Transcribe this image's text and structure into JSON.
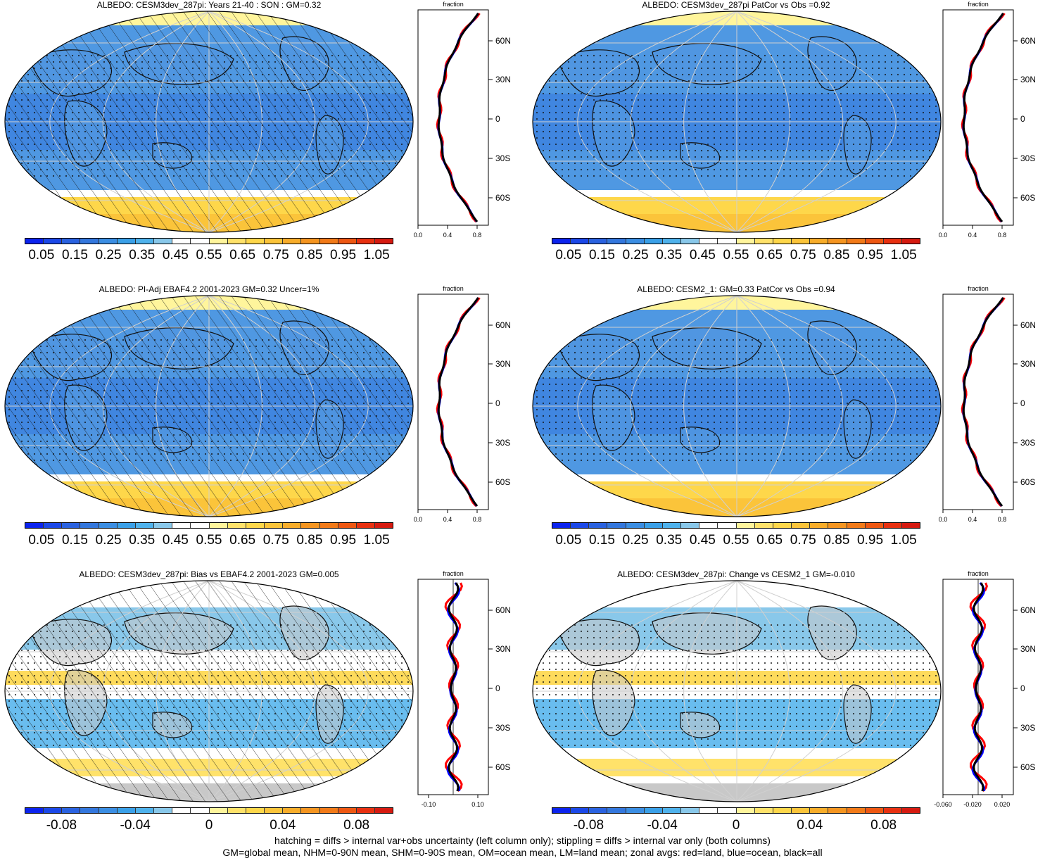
{
  "panels": [
    {
      "id": "p1",
      "title": "ALBEDO: CESM3dev_287pi: Years 21-40 : SON : GM=0.32",
      "kind": "abs",
      "hatch": true,
      "zonal_ticks": [
        "0.0",
        "0.4",
        "0.8"
      ],
      "zonal_header": "fraction"
    },
    {
      "id": "p2",
      "title": "ALBEDO: CESM3dev_287pi PatCor vs Obs =0.92",
      "kind": "abs",
      "hatch": false,
      "zonal_ticks": [
        "0.0",
        "0.4",
        "0.8"
      ],
      "zonal_header": "fraction"
    },
    {
      "id": "p3",
      "title": "ALBEDO: PI-Adj EBAF4.2 2001-2023 GM=0.32 Uncer=1%",
      "kind": "abs",
      "hatch": true,
      "zonal_ticks": [
        "0.0",
        "0.4",
        "0.8"
      ],
      "zonal_header": "fraction"
    },
    {
      "id": "p4",
      "title": "ALBEDO: CESM2_1: GM=0.33 PatCor vs Obs =0.94",
      "kind": "abs",
      "hatch": false,
      "zonal_ticks": [
        "0.0",
        "0.4",
        "0.8"
      ],
      "zonal_header": "fraction"
    },
    {
      "id": "p5",
      "title": "ALBEDO: CESM3dev_287pi: Bias vs EBAF4.2 2001-2023  GM=0.005",
      "kind": "diff",
      "hatch": true,
      "zonal_ticks": [
        "-0.10",
        "0.10"
      ],
      "zonal_header": "fraction"
    },
    {
      "id": "p6",
      "title": "ALBEDO: CESM3dev_287pi: Change vs CESM2_1 GM=-0.010",
      "kind": "diff",
      "hatch": false,
      "zonal_ticks": [
        "-0.060",
        "-0.020",
        "0.020"
      ],
      "zonal_header": "fraction"
    }
  ],
  "lat_labels": [
    "60N",
    "30N",
    "0",
    "30S",
    "60S"
  ],
  "colorbar_abs_labels": [
    "0.05",
    "0.15",
    "0.25",
    "0.35",
    "0.45",
    "0.55",
    "0.65",
    "0.75",
    "0.85",
    "0.95",
    "1.05"
  ],
  "colorbar_diff_labels": [
    "-0.08",
    "-0.04",
    "0",
    "0.04",
    "0.08"
  ],
  "colors": {
    "abs_scale": [
      "#0b23ee",
      "#1b48e8",
      "#2a62e0",
      "#3377dd",
      "#3b8ee3",
      "#3aa0e8",
      "#4fb2ec",
      "#89c8ea",
      "#ffffff",
      "#ffffff",
      "#fff59c",
      "#ffe26a",
      "#fed74a",
      "#fbc43a",
      "#f8ad2a",
      "#f59520",
      "#f27a18",
      "#ee5712",
      "#e83010",
      "#d61a10"
    ],
    "diff_scale": [
      "#0b23ee",
      "#1b48e8",
      "#2a62e0",
      "#3377dd",
      "#3b8ee3",
      "#3aa0e8",
      "#4fb2ec",
      "#89c8ea",
      "#ffffff",
      "#ffffff",
      "#fff59c",
      "#ffe26a",
      "#fed74a",
      "#fbc43a",
      "#f8ad2a",
      "#f59520",
      "#f27a18",
      "#ee5712",
      "#e83010",
      "#d61a10"
    ],
    "ocean_abs": "#4f98e2",
    "land_gray": "#c8c8c8",
    "zonal_land": "#ff0000",
    "zonal_ocean": "#0000ff",
    "zonal_all": "#000000"
  },
  "footnote_lines": [
    "hatching = diffs > internal var+obs uncertainty (left column only); stippling = diffs > internal var only (both columns)",
    "GM=global mean, NHM=0-90N mean, SHM=0-90S mean, OM=ocean mean, LM=land mean; zonal avgs: red=land, blue=ocean, black=all"
  ]
}
